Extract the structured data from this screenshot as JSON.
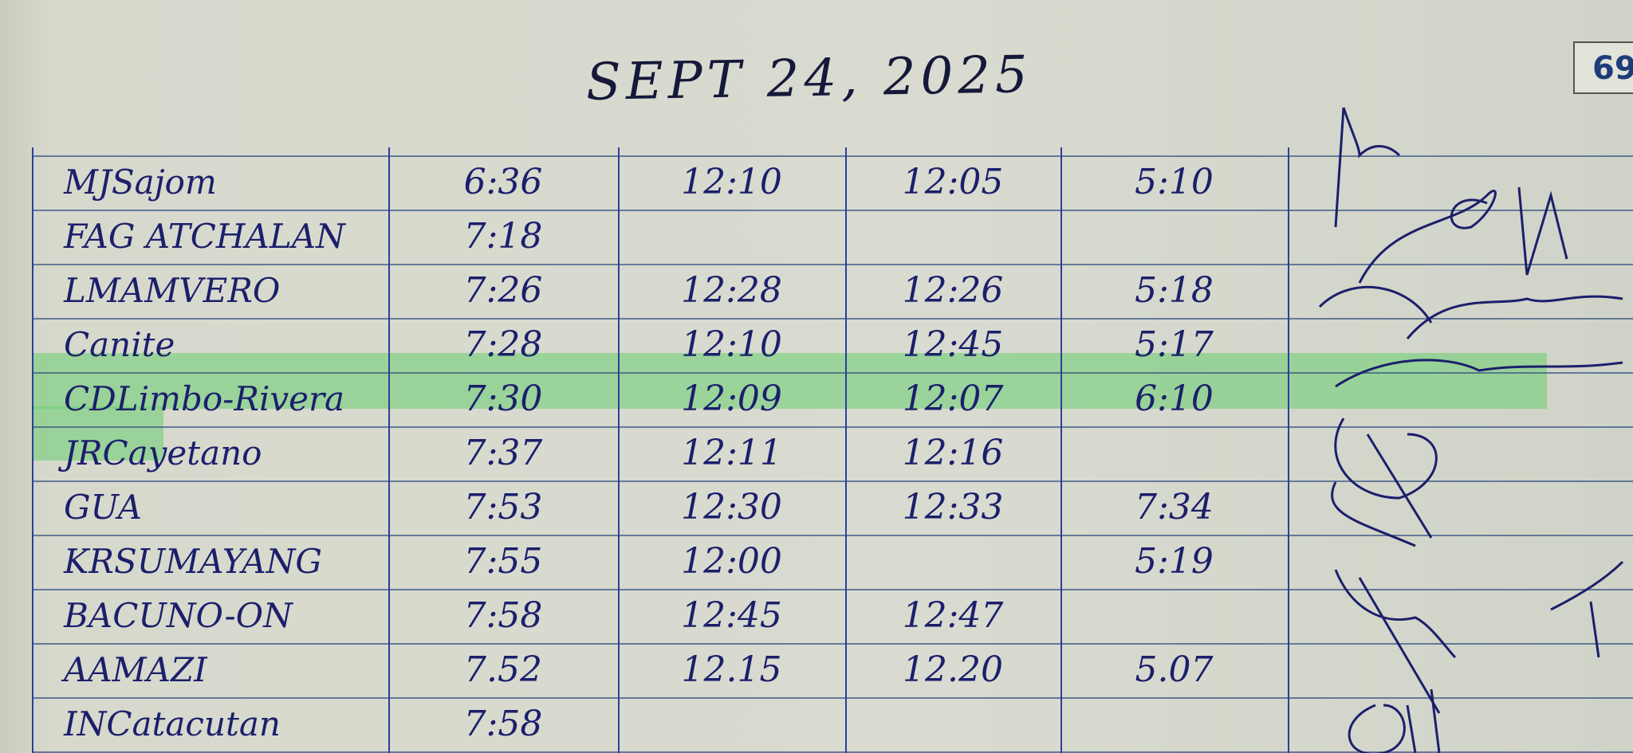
{
  "header": {
    "date": "SEPT 24, 2025",
    "page_number": "69"
  },
  "colors": {
    "ink": "#1b1f6b",
    "rule": "#2c3f9a",
    "highlight": "#6fcf76",
    "paper": "#d7d9cd"
  },
  "log": {
    "rows": [
      {
        "name": "MJSajom",
        "time_in_am": "6:36",
        "time_out_am": "12:10",
        "time_in_pm": "12:05",
        "time_out_pm": "5:10",
        "highlighted": false
      },
      {
        "name": "FAG ATCHALAN",
        "time_in_am": "7:18",
        "time_out_am": "",
        "time_in_pm": "",
        "time_out_pm": "",
        "highlighted": false
      },
      {
        "name": "LMAMVERO",
        "time_in_am": "7:26",
        "time_out_am": "12:28",
        "time_in_pm": "12:26",
        "time_out_pm": "5:18",
        "highlighted": false
      },
      {
        "name": "Canite",
        "time_in_am": "7:28",
        "time_out_am": "12:10",
        "time_in_pm": "12:45",
        "time_out_pm": "5:17",
        "highlighted": false
      },
      {
        "name": "CDLimbo-Rivera",
        "time_in_am": "7:30",
        "time_out_am": "12:09",
        "time_in_pm": "12:07",
        "time_out_pm": "6:10",
        "highlighted": true
      },
      {
        "name": "JRCayetano",
        "time_in_am": "7:37",
        "time_out_am": "12:11",
        "time_in_pm": "12:16",
        "time_out_pm": "",
        "highlighted": false
      },
      {
        "name": "GUA",
        "time_in_am": "7:53",
        "time_out_am": "12:30",
        "time_in_pm": "12:33",
        "time_out_pm": "7:34",
        "highlighted": false
      },
      {
        "name": "KRSUMAYANG",
        "time_in_am": "7:55",
        "time_out_am": "12:00",
        "time_in_pm": "",
        "time_out_pm": "5:19",
        "highlighted": false
      },
      {
        "name": "BACUNO-ON",
        "time_in_am": "7:58",
        "time_out_am": "12:45",
        "time_in_pm": "12:47",
        "time_out_pm": "",
        "highlighted": false
      },
      {
        "name": "AAMAZI",
        "time_in_am": "7.52",
        "time_out_am": "12.15",
        "time_in_pm": "12.20",
        "time_out_pm": "5.07",
        "highlighted": false
      },
      {
        "name": "INCatacutan",
        "time_in_am": "7:58",
        "time_out_am": "",
        "time_in_pm": "",
        "time_out_pm": "",
        "highlighted": false
      }
    ]
  }
}
